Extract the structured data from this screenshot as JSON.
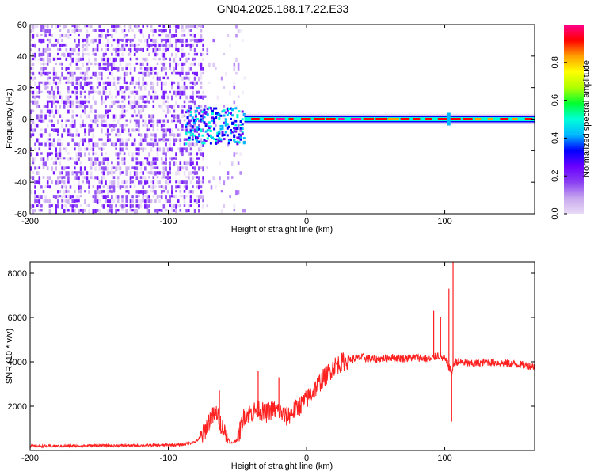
{
  "title": "GN04.2025.188.17.22.E33",
  "colors": {
    "spectrogram_stops": [
      "#e9dbf6",
      "#c7a7ee",
      "#8a3ff2",
      "#6a00ff",
      "#0000ff",
      "#00b8ff",
      "#00ffd8",
      "#00ff30",
      "#b0ff00",
      "#ffff00",
      "#ffa000",
      "#ff0000",
      "#ff0090"
    ],
    "snr_line": "#ff2020",
    "axis": "#000000"
  },
  "chart_data": [
    {
      "type": "heatmap",
      "title": "GN04.2025.188.17.22.E33",
      "xlabel": "Height of straight line (km)",
      "ylabel": "Frequency (Hz)",
      "xlim": [
        -200,
        165
      ],
      "ylim": [
        -60,
        60
      ],
      "x_ticks": [
        "-200",
        "-100",
        "0",
        "100"
      ],
      "y_ticks": [
        "60",
        "40",
        "20",
        "0",
        "-20",
        "-40",
        "-60"
      ],
      "colorbar": {
        "label": "Normalized spectral amplitude",
        "range": [
          0,
          1
        ],
        "ticks": [
          "0.0",
          "0.2",
          "0.4",
          "0.6",
          "0.8"
        ]
      },
      "features": {
        "broadband_noise_x": [
          -200,
          -75
        ],
        "sparse_noise_x": [
          -75,
          -45
        ],
        "emerging_signal_x": [
          -88,
          -45
        ],
        "emerging_signal_freq": [
          -15,
          8
        ],
        "steady_line_x": [
          -45,
          165
        ],
        "steady_line_freq": 0,
        "spike_x": 103
      }
    },
    {
      "type": "line",
      "xlabel": "Height of straight line (km)",
      "ylabel": "SNR (10 * v/v)",
      "xlim": [
        -200,
        165
      ],
      "ylim": [
        0,
        8500
      ],
      "x_ticks": [
        "-200",
        "-100",
        "0",
        "100"
      ],
      "y_ticks": [
        "8000",
        "6000",
        "4000",
        "2000"
      ],
      "x": [
        -200,
        -180,
        -160,
        -140,
        -120,
        -100,
        -90,
        -80,
        -75,
        -70,
        -65,
        -62,
        -58,
        -55,
        -50,
        -45,
        -40,
        -35,
        -30,
        -25,
        -20,
        -15,
        -10,
        -5,
        0,
        5,
        10,
        20,
        30,
        40,
        50,
        60,
        70,
        80,
        90,
        95,
        100,
        103,
        105,
        107,
        110,
        120,
        130,
        140,
        150,
        165
      ],
      "values": [
        200,
        200,
        220,
        220,
        230,
        250,
        260,
        400,
        700,
        1400,
        1700,
        1200,
        700,
        300,
        500,
        1600,
        1700,
        1900,
        1650,
        1850,
        1800,
        1500,
        1750,
        2000,
        2300,
        2700,
        3100,
        3800,
        4100,
        4200,
        4100,
        4200,
        4150,
        4200,
        4100,
        4300,
        4100,
        3800,
        3500,
        4000,
        4000,
        3900,
        4000,
        3950,
        3900,
        3800
      ],
      "spikes": [
        {
          "x": -63,
          "value": 2700
        },
        {
          "x": -35,
          "value": 3600
        },
        {
          "x": -20,
          "value": 3300
        },
        {
          "x": 92,
          "value": 6300
        },
        {
          "x": 97,
          "value": 6000
        },
        {
          "x": 103,
          "value": 7300
        },
        {
          "x": 106,
          "value": 8500
        },
        {
          "x": 105,
          "value": 1300
        }
      ]
    }
  ]
}
